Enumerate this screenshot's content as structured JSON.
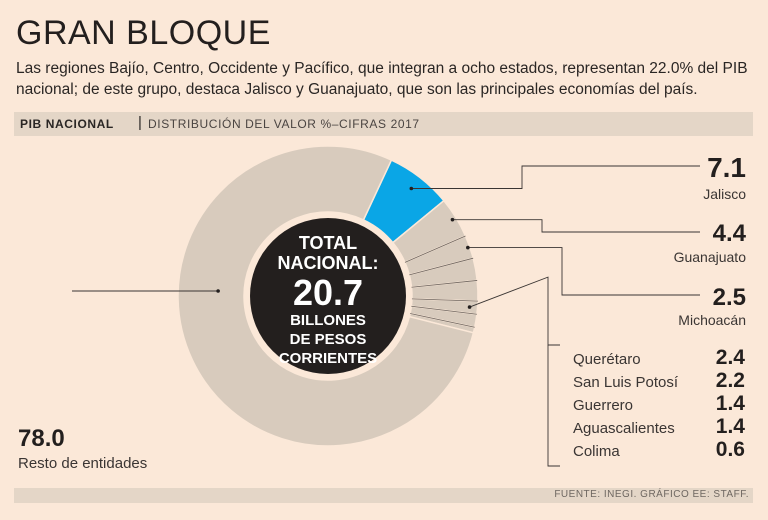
{
  "title": "GRAN BLOQUE",
  "subtitle": "Las regiones Bajío, Centro, Occidente y Pacífico, que integran a ocho estados, representan 22.0% del PIB nacional; de este grupo, destaca Jalisco y Guanajuato, que son las principales economías del país.",
  "header_bar": {
    "bold": "PIB NACIONAL",
    "separator": "|",
    "rest": "DISTRIBUCIÓN DEL VALOR %–CIFRAS 2017"
  },
  "center": {
    "line1": "TOTAL",
    "line2": "NACIONAL:",
    "value": "20.7",
    "line3": "BILLONES",
    "line4": "DE PESOS",
    "line5": "CORRIENTES"
  },
  "footer": "FUENTE: INEGI. GRÁFICO EE: STAFF.",
  "colors": {
    "background": "#fbe8d8",
    "slice": "#d8cbbd",
    "highlight": "#0aa6e6",
    "center": "#231f1e",
    "bar": "#e4d6c7"
  },
  "chart_data": {
    "type": "pie",
    "title": "PIB NACIONAL",
    "subtitle": "DISTRIBUCIÓN DEL VALOR %–CIFRAS 2017",
    "categories": [
      "Jalisco",
      "Guanajuato",
      "Michoacán",
      "Querétaro",
      "San Luis Potosí",
      "Guerrero",
      "Aguascalientes",
      "Colima",
      "Resto de entidades"
    ],
    "values": [
      7.1,
      4.4,
      2.5,
      2.4,
      2.2,
      1.4,
      1.4,
      0.6,
      78.0
    ],
    "labels": [
      "7.1",
      "4.4",
      "2.5",
      "2.4",
      "2.2",
      "1.4",
      "1.4",
      "0.6",
      "78.0"
    ],
    "highlight": "Jalisco"
  }
}
